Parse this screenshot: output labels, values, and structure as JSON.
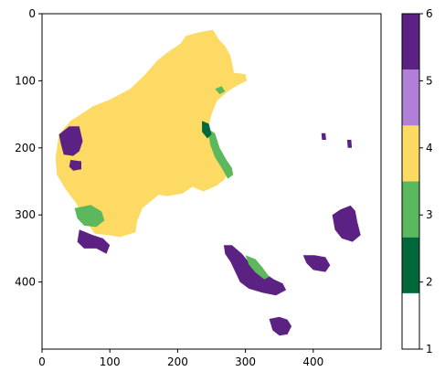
{
  "chart_data": {
    "type": "heatmap",
    "title": "",
    "xlabel": "",
    "ylabel": "",
    "xlim": [
      0,
      500
    ],
    "ylim": [
      500,
      0
    ],
    "x_ticks": [
      0,
      100,
      200,
      300,
      400
    ],
    "y_ticks": [
      0,
      100,
      200,
      300,
      400
    ],
    "x_tick_labels": [
      "0",
      "100",
      "200",
      "300",
      "400"
    ],
    "y_tick_labels": [
      "0",
      "100",
      "200",
      "300",
      "400"
    ],
    "grid": false,
    "colorbar": {
      "range": [
        1,
        6
      ],
      "ticks": [
        1,
        2,
        3,
        4,
        5,
        6
      ],
      "tick_labels": [
        "1",
        "2",
        "3",
        "4",
        "5",
        "6"
      ],
      "bands": [
        {
          "from": 1.0,
          "to": 1.833,
          "color": "#ffffff"
        },
        {
          "from": 1.833,
          "to": 2.667,
          "color": "#00683a"
        },
        {
          "from": 2.667,
          "to": 3.5,
          "color": "#5cb85c"
        },
        {
          "from": 3.5,
          "to": 4.333,
          "color": "#fcda63"
        },
        {
          "from": 4.333,
          "to": 5.167,
          "color": "#b07fd6"
        },
        {
          "from": 5.167,
          "to": 6.0,
          "color": "#5b2283"
        }
      ]
    },
    "regions": [
      {
        "name": "mainland-yellow",
        "class": 4,
        "color": "#fcda63",
        "points": [
          [
            20,
            215
          ],
          [
            25,
            180
          ],
          [
            42,
            160
          ],
          [
            75,
            138
          ],
          [
            100,
            128
          ],
          [
            130,
            112
          ],
          [
            150,
            93
          ],
          [
            170,
            70
          ],
          [
            182,
            60
          ],
          [
            205,
            44
          ],
          [
            212,
            33
          ],
          [
            235,
            27
          ],
          [
            252,
            24
          ],
          [
            262,
            40
          ],
          [
            270,
            48
          ],
          [
            278,
            63
          ],
          [
            283,
            88
          ],
          [
            300,
            90
          ],
          [
            302,
            100
          ],
          [
            286,
            108
          ],
          [
            275,
            115
          ],
          [
            258,
            130
          ],
          [
            250,
            150
          ],
          [
            245,
            170
          ],
          [
            248,
            188
          ],
          [
            258,
            215
          ],
          [
            270,
            222
          ],
          [
            278,
            233
          ],
          [
            268,
            248
          ],
          [
            258,
            256
          ],
          [
            238,
            265
          ],
          [
            222,
            258
          ],
          [
            207,
            268
          ],
          [
            185,
            272
          ],
          [
            172,
            270
          ],
          [
            160,
            280
          ],
          [
            148,
            290
          ],
          [
            140,
            310
          ],
          [
            138,
            326
          ],
          [
            115,
            333
          ],
          [
            98,
            330
          ],
          [
            78,
            328
          ],
          [
            65,
            310
          ],
          [
            50,
            282
          ],
          [
            35,
            262
          ],
          [
            22,
            240
          ]
        ]
      },
      {
        "name": "west-purple",
        "class": 6,
        "color": "#5b2283",
        "points": [
          [
            25,
            180
          ],
          [
            40,
            168
          ],
          [
            55,
            168
          ],
          [
            60,
            190
          ],
          [
            55,
            205
          ],
          [
            46,
            212
          ],
          [
            32,
            210
          ],
          [
            28,
            195
          ]
        ]
      },
      {
        "name": "west-purple-small",
        "class": 6,
        "color": "#5b2283",
        "points": [
          [
            42,
            218
          ],
          [
            58,
            220
          ],
          [
            58,
            232
          ],
          [
            46,
            234
          ],
          [
            40,
            228
          ]
        ]
      },
      {
        "name": "southwest-purple",
        "class": 6,
        "color": "#5b2283",
        "points": [
          [
            55,
            322
          ],
          [
            75,
            330
          ],
          [
            90,
            335
          ],
          [
            100,
            345
          ],
          [
            95,
            358
          ],
          [
            80,
            350
          ],
          [
            62,
            350
          ],
          [
            52,
            340
          ]
        ]
      },
      {
        "name": "southeast-purple",
        "class": 6,
        "color": "#5b2283",
        "points": [
          [
            268,
            345
          ],
          [
            280,
            345
          ],
          [
            295,
            358
          ],
          [
            308,
            374
          ],
          [
            318,
            382
          ],
          [
            330,
            388
          ],
          [
            342,
            396
          ],
          [
            355,
            402
          ],
          [
            360,
            412
          ],
          [
            345,
            420
          ],
          [
            325,
            416
          ],
          [
            305,
            410
          ],
          [
            292,
            400
          ],
          [
            285,
            385
          ],
          [
            278,
            370
          ],
          [
            270,
            358
          ]
        ]
      },
      {
        "name": "southeast-purple-b",
        "class": 6,
        "color": "#5b2283",
        "points": [
          [
            385,
            360
          ],
          [
            402,
            360
          ],
          [
            418,
            363
          ],
          [
            425,
            375
          ],
          [
            418,
            385
          ],
          [
            400,
            382
          ],
          [
            390,
            372
          ]
        ]
      },
      {
        "name": "east-purple",
        "class": 6,
        "color": "#5b2283",
        "points": [
          [
            428,
            300
          ],
          [
            440,
            292
          ],
          [
            455,
            286
          ],
          [
            462,
            294
          ],
          [
            465,
            310
          ],
          [
            470,
            330
          ],
          [
            458,
            340
          ],
          [
            442,
            335
          ],
          [
            432,
            322
          ]
        ]
      },
      {
        "name": "tasmania-purple",
        "class": 6,
        "color": "#5b2283",
        "points": [
          [
            335,
            455
          ],
          [
            350,
            452
          ],
          [
            362,
            456
          ],
          [
            368,
            466
          ],
          [
            362,
            478
          ],
          [
            350,
            480
          ],
          [
            340,
            472
          ]
        ]
      },
      {
        "name": "east-green-coast",
        "class": 3,
        "color": "#5cb85c",
        "points": [
          [
            245,
            172
          ],
          [
            255,
            178
          ],
          [
            262,
            200
          ],
          [
            272,
            218
          ],
          [
            280,
            230
          ],
          [
            282,
            240
          ],
          [
            274,
            246
          ],
          [
            265,
            230
          ],
          [
            255,
            214
          ],
          [
            248,
            195
          ]
        ]
      },
      {
        "name": "southwest-green",
        "class": 3,
        "color": "#5cb85c",
        "points": [
          [
            48,
            290
          ],
          [
            72,
            285
          ],
          [
            88,
            295
          ],
          [
            92,
            308
          ],
          [
            80,
            318
          ],
          [
            62,
            316
          ],
          [
            52,
            305
          ]
        ]
      },
      {
        "name": "south-green-strip",
        "class": 3,
        "color": "#5cb85c",
        "points": [
          [
            300,
            360
          ],
          [
            315,
            366
          ],
          [
            325,
            378
          ],
          [
            335,
            392
          ],
          [
            328,
            396
          ],
          [
            315,
            386
          ],
          [
            305,
            374
          ]
        ]
      },
      {
        "name": "east-dark-green",
        "class": 2,
        "color": "#00683a",
        "points": [
          [
            236,
            160
          ],
          [
            246,
            164
          ],
          [
            250,
            180
          ],
          [
            244,
            186
          ],
          [
            236,
            176
          ]
        ]
      },
      {
        "name": "north-green-speck",
        "class": 3,
        "color": "#5cb85c",
        "points": [
          [
            255,
            112
          ],
          [
            265,
            108
          ],
          [
            270,
            116
          ],
          [
            262,
            120
          ]
        ]
      },
      {
        "name": "east-island-a",
        "class": 6,
        "color": "#5b2283",
        "points": [
          [
            412,
            178
          ],
          [
            418,
            178
          ],
          [
            419,
            188
          ],
          [
            413,
            188
          ]
        ]
      },
      {
        "name": "east-island-b",
        "class": 6,
        "color": "#5b2283",
        "points": [
          [
            450,
            188
          ],
          [
            456,
            188
          ],
          [
            457,
            200
          ],
          [
            451,
            200
          ]
        ]
      }
    ]
  }
}
